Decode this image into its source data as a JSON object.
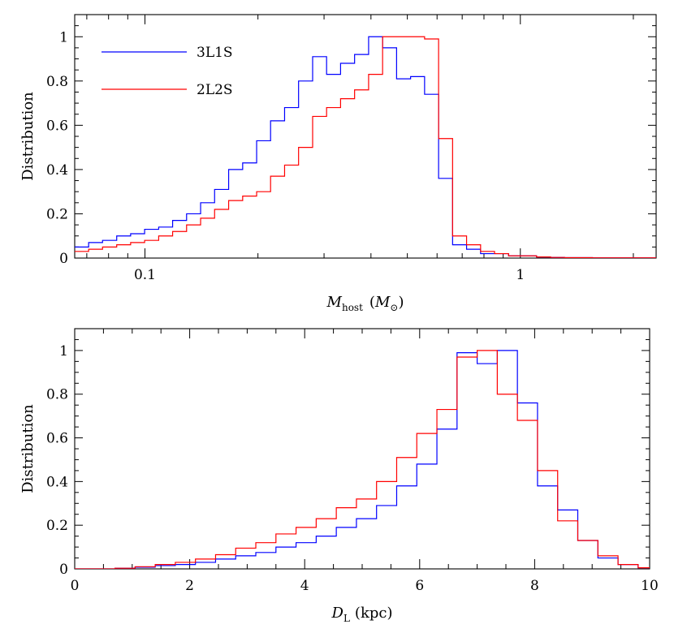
{
  "chart_data": [
    {
      "type": "line",
      "step": true,
      "xscale": "log",
      "xlim": [
        0.065,
        2.3
      ],
      "ylim": [
        0,
        1.1
      ],
      "xticks_major": [
        0.1,
        1
      ],
      "xtick_labels": [
        "0.1",
        "1"
      ],
      "yticks": [
        0,
        0.2,
        0.4,
        0.6,
        0.8,
        1
      ],
      "ytick_labels": [
        "0",
        "0.2",
        "0.4",
        "0.6",
        "0.8",
        "1"
      ],
      "ylabel": "Distribution",
      "xlabel_main": "M",
      "xlabel_sub": "host",
      "xlabel_unit_open": "(",
      "xlabel_unit_main": "M",
      "xlabel_unit_sub": "⊙",
      "xlabel_unit_close": ")",
      "legend": "top-left",
      "series": [
        {
          "name": "3L1S",
          "color": "#0000ff",
          "edges": [
            0.065,
            0.0708,
            0.0771,
            0.0841,
            0.0916,
            0.0998,
            0.1088,
            0.1185,
            0.1291,
            0.1407,
            0.1533,
            0.1671,
            0.1821,
            0.1984,
            0.2161,
            0.2355,
            0.2566,
            0.2797,
            0.3047,
            0.332,
            0.3618,
            0.3943,
            0.4296,
            0.4681,
            0.5101,
            0.5558,
            0.6057,
            0.66,
            0.7191,
            0.7836,
            0.8538,
            0.9304,
            1.0138,
            1.1047,
            1.2037,
            1.3116,
            1.4292,
            1.5573,
            1.697,
            1.8491,
            2.0149,
            2.3
          ],
          "values": [
            0.05,
            0.07,
            0.08,
            0.1,
            0.11,
            0.13,
            0.14,
            0.17,
            0.2,
            0.25,
            0.31,
            0.4,
            0.43,
            0.53,
            0.62,
            0.68,
            0.8,
            0.91,
            0.83,
            0.88,
            0.92,
            1.0,
            0.95,
            0.81,
            0.82,
            0.74,
            0.36,
            0.06,
            0.04,
            0.02,
            0.02,
            0.01,
            0.01,
            0.005,
            0.003,
            0.002,
            0.002,
            0.001,
            0.001,
            0.001,
            0.001
          ]
        },
        {
          "name": "2L2S",
          "color": "#ff0000",
          "edges": [
            0.065,
            0.0708,
            0.0771,
            0.0841,
            0.0916,
            0.0998,
            0.1088,
            0.1185,
            0.1291,
            0.1407,
            0.1533,
            0.1671,
            0.1821,
            0.1984,
            0.2161,
            0.2355,
            0.2566,
            0.2797,
            0.3047,
            0.332,
            0.3618,
            0.3943,
            0.4296,
            0.4681,
            0.5101,
            0.5558,
            0.6057,
            0.66,
            0.7191,
            0.7836,
            0.8538,
            0.9304,
            1.0138,
            1.1047,
            1.2037,
            1.3116,
            1.4292,
            1.5573,
            1.697,
            1.8491,
            2.0149,
            2.3
          ],
          "values": [
            0.03,
            0.04,
            0.05,
            0.06,
            0.07,
            0.08,
            0.1,
            0.12,
            0.15,
            0.18,
            0.22,
            0.26,
            0.28,
            0.3,
            0.37,
            0.42,
            0.5,
            0.64,
            0.68,
            0.72,
            0.76,
            0.83,
            1.0,
            1.0,
            1.0,
            0.99,
            0.54,
            0.1,
            0.06,
            0.03,
            0.02,
            0.01,
            0.01,
            0.005,
            0.003,
            0.002,
            0.002,
            0.001,
            0.001,
            0.001,
            0.001
          ]
        }
      ],
      "legend_entries": [
        "3L1S",
        "2L2S"
      ]
    },
    {
      "type": "line",
      "step": true,
      "xscale": "linear",
      "xlim": [
        0,
        10
      ],
      "ylim": [
        0,
        1.1
      ],
      "xticks_major": [
        0,
        2,
        4,
        6,
        8,
        10
      ],
      "xtick_labels": [
        "0",
        "2",
        "4",
        "6",
        "8",
        "10"
      ],
      "yticks": [
        0,
        0.2,
        0.4,
        0.6,
        0.8,
        1
      ],
      "ytick_labels": [
        "0",
        "0.2",
        "0.4",
        "0.6",
        "0.8",
        "1"
      ],
      "ylabel": "Distribution",
      "xlabel_main": "D",
      "xlabel_sub": "L",
      "xlabel_unit": "(kpc)",
      "series": [
        {
          "name": "3L1S",
          "color": "#0000ff",
          "edges": [
            0,
            0.35,
            0.7,
            1.05,
            1.4,
            1.75,
            2.1,
            2.45,
            2.8,
            3.15,
            3.5,
            3.85,
            4.2,
            4.55,
            4.9,
            5.25,
            5.6,
            5.95,
            6.3,
            6.65,
            7.0,
            7.35,
            7.7,
            8.05,
            8.4,
            8.75,
            9.1,
            9.45,
            9.8,
            10
          ],
          "values": [
            0.0,
            0.0,
            0.003,
            0.008,
            0.015,
            0.02,
            0.03,
            0.045,
            0.06,
            0.075,
            0.1,
            0.12,
            0.15,
            0.19,
            0.23,
            0.29,
            0.38,
            0.48,
            0.64,
            0.99,
            0.94,
            1.0,
            0.76,
            0.38,
            0.27,
            0.13,
            0.05,
            0.02,
            0.005
          ]
        },
        {
          "name": "2L2S",
          "color": "#ff0000",
          "edges": [
            0,
            0.35,
            0.7,
            1.05,
            1.4,
            1.75,
            2.1,
            2.45,
            2.8,
            3.15,
            3.5,
            3.85,
            4.2,
            4.55,
            4.9,
            5.25,
            5.6,
            5.95,
            6.3,
            6.65,
            7.0,
            7.35,
            7.7,
            8.05,
            8.4,
            8.75,
            9.1,
            9.45,
            9.8,
            10
          ],
          "values": [
            0.0,
            0.0,
            0.003,
            0.01,
            0.02,
            0.03,
            0.045,
            0.065,
            0.095,
            0.12,
            0.16,
            0.19,
            0.23,
            0.28,
            0.32,
            0.4,
            0.51,
            0.62,
            0.73,
            0.97,
            1.0,
            0.8,
            0.68,
            0.45,
            0.22,
            0.13,
            0.06,
            0.02,
            0.005
          ]
        }
      ]
    }
  ]
}
